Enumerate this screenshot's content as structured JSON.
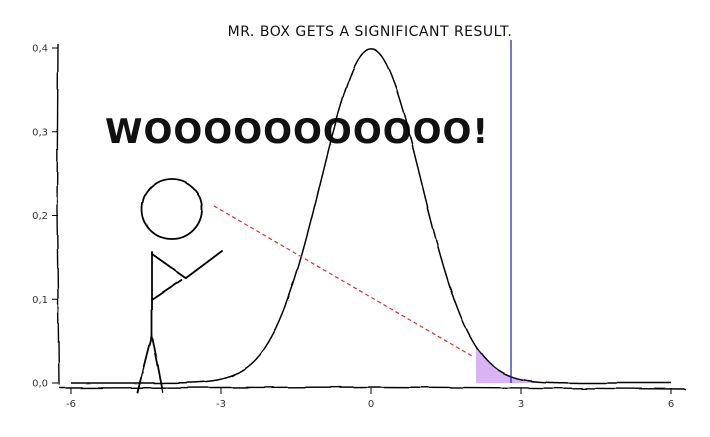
{
  "chart_data": {
    "type": "line",
    "title": "MR. BOX GETS A SIGNIFICANT RESULT.",
    "xlabel": "",
    "ylabel": "",
    "xlim": [
      -6,
      6
    ],
    "ylim": [
      0,
      0.4
    ],
    "x_ticks": [
      -6,
      -3,
      0,
      3,
      6
    ],
    "x_tick_labels": [
      "-6",
      "-3",
      "0",
      "3",
      "6"
    ],
    "y_ticks": [
      0.0,
      0.1,
      0.2,
      0.3,
      0.4
    ],
    "y_tick_labels": [
      "0,0",
      "0,1",
      "0,2",
      "0,3",
      "0,4"
    ],
    "series": [
      {
        "distribution": "normal",
        "mean": 0,
        "sd": 1,
        "x_range": [
          -6,
          6
        ],
        "color": "#000000"
      }
    ],
    "shaded_region": {
      "x_start": 2.1,
      "x_end": 6,
      "color": "#d9b3f5"
    },
    "vertical_line": {
      "x": 2.8,
      "color": "#1a1aa8"
    },
    "annotation": {
      "text": "WOOOOOOOOOOO!",
      "color": "#111111"
    },
    "pointer_line": {
      "color": "#e0302a"
    },
    "grid": false,
    "legend": "none"
  }
}
